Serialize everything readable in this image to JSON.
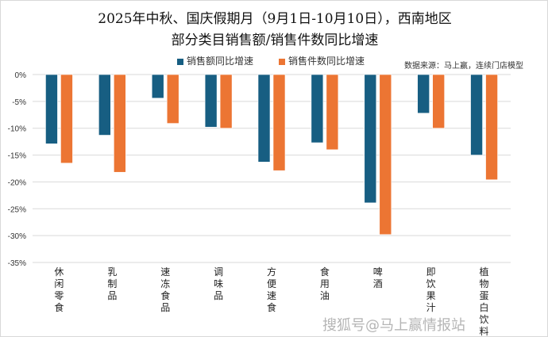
{
  "chart_data": {
    "type": "bar",
    "title": "2025年中秋、国庆假期月（9月1日-10月10日），西南地区",
    "subtitle": "部分类目销售额/销售件数同比增速",
    "source": "数据来源：马上赢，连续门店模型",
    "categories": [
      "休闲零食",
      "乳制品",
      "速冻食品",
      "调味品",
      "方便速食",
      "食用油",
      "啤酒",
      "即饮果汁",
      "植物蛋白饮料"
    ],
    "series": [
      {
        "name": "销售额同比增速",
        "color": "#175e82",
        "values": [
          -12.9,
          -11.3,
          -4.4,
          -9.8,
          -16.3,
          -12.7,
          -23.9,
          -7.2,
          -15.0
        ]
      },
      {
        "name": "销售件数同比增速",
        "color": "#ec7533",
        "values": [
          -16.5,
          -18.2,
          -9.1,
          -10.0,
          -17.9,
          -14.0,
          -29.8,
          -10.0,
          -19.6
        ]
      }
    ],
    "ylim": [
      -35,
      0
    ],
    "yticks": [
      0,
      -5,
      -10,
      -15,
      -20,
      -25,
      -30,
      -35
    ],
    "ytick_labels": [
      "0%",
      "-5%",
      "-10%",
      "-15%",
      "-20%",
      "-25%",
      "-30%",
      "-35%"
    ],
    "grid": true,
    "legend": "top-center"
  },
  "watermark": "搜狐号@马上赢情报站"
}
